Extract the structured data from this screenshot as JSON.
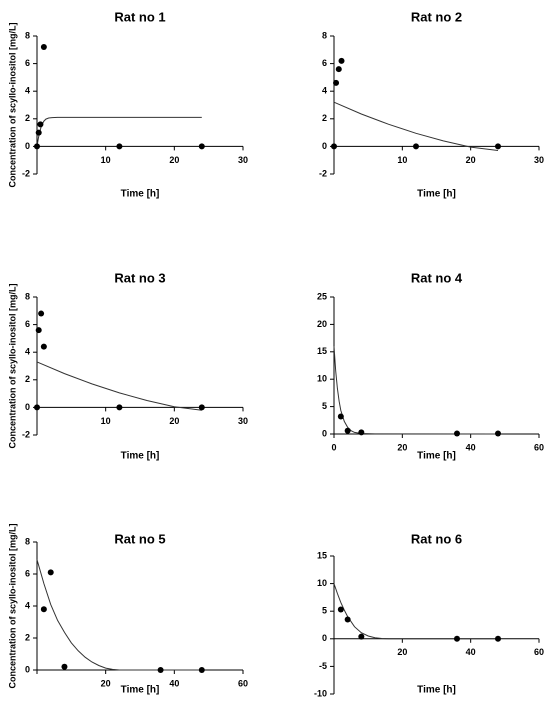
{
  "chart_data": [
    {
      "type": "scatter",
      "title": "Rat no 1",
      "xlabel": "Time [h]",
      "ylabel": "Concentration of scyllo-inositol [mg/L]",
      "xlim": [
        0,
        30
      ],
      "ylim": [
        -2,
        8
      ],
      "xticks": [
        0,
        10,
        20,
        30
      ],
      "yticks": [
        -2,
        0,
        2,
        4,
        6,
        8
      ],
      "xtick_labels": [
        "",
        "10",
        "20",
        "30"
      ],
      "ytick_labels": [
        "-2",
        "0",
        "2",
        "4",
        "6",
        "8"
      ],
      "points": [
        [
          0,
          0
        ],
        [
          0.25,
          1.0
        ],
        [
          0.5,
          1.6
        ],
        [
          1,
          7.2
        ],
        [
          12,
          0
        ],
        [
          24,
          0
        ]
      ],
      "fit": [
        [
          0,
          0
        ],
        [
          0.2,
          0.6
        ],
        [
          0.4,
          1.05
        ],
        [
          0.6,
          1.4
        ],
        [
          0.8,
          1.65
        ],
        [
          1,
          1.83
        ],
        [
          1.3,
          1.98
        ],
        [
          1.7,
          2.06
        ],
        [
          2.2,
          2.09
        ],
        [
          3,
          2.1
        ],
        [
          24,
          2.1
        ]
      ]
    },
    {
      "type": "scatter",
      "title": "Rat  no 2",
      "xlabel": "Time [h]",
      "ylabel": "",
      "xlim": [
        0,
        30
      ],
      "ylim": [
        -2,
        8
      ],
      "xticks": [
        0,
        10,
        20,
        30
      ],
      "yticks": [
        -2,
        0,
        2,
        4,
        6,
        8
      ],
      "xtick_labels": [
        "",
        "10",
        "20",
        "30"
      ],
      "ytick_labels": [
        "-2",
        "0",
        "2",
        "4",
        "6",
        "8"
      ],
      "points": [
        [
          0,
          0
        ],
        [
          0.3,
          4.6
        ],
        [
          0.7,
          5.6
        ],
        [
          1.1,
          6.2
        ],
        [
          12,
          0
        ],
        [
          24,
          0
        ]
      ],
      "fit": [
        [
          0,
          3.2
        ],
        [
          4,
          2.35
        ],
        [
          8,
          1.6
        ],
        [
          12,
          0.95
        ],
        [
          16,
          0.4
        ],
        [
          20,
          -0.05
        ],
        [
          24,
          -0.3
        ]
      ]
    },
    {
      "type": "scatter",
      "title": "Rat no 3",
      "xlabel": "Time [h]",
      "ylabel": "Concentration of scyllo-inositol [mg/L]",
      "xlim": [
        0,
        30
      ],
      "ylim": [
        -2,
        8
      ],
      "xticks": [
        0,
        10,
        20,
        30
      ],
      "yticks": [
        -2,
        0,
        2,
        4,
        6,
        8
      ],
      "xtick_labels": [
        "",
        "10",
        "20",
        "30"
      ],
      "ytick_labels": [
        "-2",
        "0",
        "2",
        "4",
        "6",
        "8"
      ],
      "points": [
        [
          0,
          0
        ],
        [
          0.25,
          5.6
        ],
        [
          0.6,
          6.8
        ],
        [
          1,
          4.4
        ],
        [
          12,
          0
        ],
        [
          24,
          0
        ]
      ],
      "fit": [
        [
          0,
          3.3
        ],
        [
          4,
          2.45
        ],
        [
          8,
          1.7
        ],
        [
          12,
          1.05
        ],
        [
          16,
          0.5
        ],
        [
          20,
          0.05
        ],
        [
          24,
          -0.2
        ]
      ]
    },
    {
      "type": "scatter",
      "title": "Rat no 4",
      "xlabel": "Time [h]",
      "ylabel": "",
      "xlim": [
        0,
        60
      ],
      "ylim": [
        0,
        25
      ],
      "xticks": [
        0,
        20,
        40,
        60
      ],
      "yticks": [
        0,
        5,
        10,
        15,
        20,
        25
      ],
      "xtick_labels": [
        "0",
        "20",
        "40",
        "60"
      ],
      "ytick_labels": [
        "0",
        "5",
        "10",
        "15",
        "20",
        "25"
      ],
      "points": [
        [
          2,
          3.2
        ],
        [
          4,
          0.6
        ],
        [
          8,
          0.3
        ],
        [
          36,
          0.1
        ],
        [
          48,
          0.1
        ]
      ],
      "fit": [
        [
          0,
          16
        ],
        [
          0.5,
          11.5
        ],
        [
          1,
          8.3
        ],
        [
          1.5,
          6
        ],
        [
          2,
          4.3
        ],
        [
          3,
          2.3
        ],
        [
          4,
          1.2
        ],
        [
          5,
          0.6
        ],
        [
          6,
          0.3
        ],
        [
          8,
          0.1
        ],
        [
          12,
          0.02
        ],
        [
          48,
          0
        ]
      ]
    },
    {
      "type": "scatter",
      "title": "Rat no 5",
      "xlabel": "Time [h]",
      "ylabel": "Concentration of scyllo-inositol [mg/L]",
      "xlim": [
        0,
        60
      ],
      "ylim": [
        0,
        8
      ],
      "xticks": [
        0,
        20,
        40,
        60
      ],
      "yticks": [
        0,
        2,
        4,
        6,
        8
      ],
      "xtick_labels": [
        "",
        "20",
        "40",
        "60"
      ],
      "ytick_labels": [
        "0",
        "2",
        "4",
        "6",
        "8"
      ],
      "points": [
        [
          2,
          3.8
        ],
        [
          4,
          6.1
        ],
        [
          8,
          0.2
        ],
        [
          36,
          0
        ],
        [
          48,
          0
        ]
      ],
      "fit": [
        [
          0,
          6.9
        ],
        [
          2,
          5.4
        ],
        [
          4,
          4.1
        ],
        [
          6,
          3.1
        ],
        [
          8,
          2.35
        ],
        [
          10,
          1.7
        ],
        [
          12,
          1.2
        ],
        [
          14,
          0.8
        ],
        [
          16,
          0.5
        ],
        [
          18,
          0.28
        ],
        [
          20,
          0.12
        ],
        [
          22,
          0.04
        ],
        [
          24,
          0
        ],
        [
          48,
          0
        ]
      ]
    },
    {
      "type": "scatter",
      "title": "Rat no 6",
      "xlabel": "Time [h]",
      "ylabel": "",
      "xlim": [
        0,
        60
      ],
      "ylim": [
        -10,
        15
      ],
      "xticks": [
        0,
        20,
        40,
        60
      ],
      "yticks": [
        -10,
        -5,
        0,
        5,
        10,
        15
      ],
      "xtick_labels": [
        "",
        "20",
        "40",
        "60"
      ],
      "ytick_labels": [
        "-10",
        "-5",
        "0",
        "5",
        "10",
        "15"
      ],
      "points": [
        [
          2,
          5.3
        ],
        [
          4,
          3.5
        ],
        [
          8,
          0.4
        ],
        [
          36,
          0
        ],
        [
          48,
          0
        ]
      ],
      "fit": [
        [
          0,
          10
        ],
        [
          1,
          8.2
        ],
        [
          2,
          6.6
        ],
        [
          3,
          5.2
        ],
        [
          4,
          4
        ],
        [
          6,
          2.2
        ],
        [
          8,
          1.1
        ],
        [
          10,
          0.5
        ],
        [
          12,
          0.2
        ],
        [
          14,
          0.05
        ],
        [
          16,
          0
        ],
        [
          48,
          0
        ]
      ]
    }
  ]
}
